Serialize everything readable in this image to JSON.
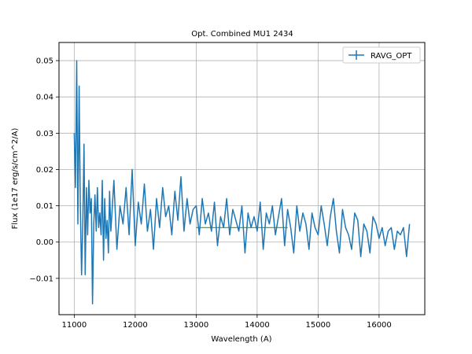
{
  "chart_data": {
    "type": "line",
    "title": "Opt. Combined MU1 2434",
    "xlabel": "Wavelength (A)",
    "ylabel": "Flux (1e17 erg/s/cm^2/A)",
    "xlim": [
      10750,
      16750
    ],
    "ylim": [
      -0.02,
      0.055
    ],
    "xticks": [
      11000,
      12000,
      13000,
      14000,
      15000,
      16000
    ],
    "yticks": [
      -0.01,
      0.0,
      0.01,
      0.02,
      0.03,
      0.04,
      0.05
    ],
    "xtick_labels": [
      "11000",
      "12000",
      "13000",
      "14000",
      "15000",
      "16000"
    ],
    "ytick_labels": [
      "−0.01",
      "0.00",
      "0.01",
      "0.02",
      "0.03",
      "0.04",
      "0.05"
    ],
    "grid": true,
    "legend": {
      "position": "top-right",
      "entries": [
        "RAVG_OPT"
      ]
    },
    "colors": {
      "series": "#1f77b4",
      "secondary": "#2ca02c"
    },
    "series": [
      {
        "name": "RAVG_OPT",
        "x": [
          11000,
          11020,
          11040,
          11060,
          11080,
          11100,
          11120,
          11140,
          11160,
          11180,
          11200,
          11220,
          11240,
          11260,
          11280,
          11300,
          11320,
          11340,
          11360,
          11380,
          11400,
          11420,
          11440,
          11460,
          11480,
          11500,
          11520,
          11540,
          11560,
          11580,
          11600,
          11650,
          11700,
          11750,
          11800,
          11850,
          11900,
          11950,
          12000,
          12050,
          12100,
          12150,
          12200,
          12250,
          12300,
          12350,
          12400,
          12450,
          12500,
          12550,
          12600,
          12650,
          12700,
          12750,
          12800,
          12850,
          12900,
          12950,
          13000,
          13050,
          13100,
          13150,
          13200,
          13250,
          13300,
          13350,
          13400,
          13450,
          13500,
          13550,
          13600,
          13650,
          13700,
          13750,
          13800,
          13850,
          13900,
          13950,
          14000,
          14050,
          14100,
          14150,
          14200,
          14250,
          14300,
          14350,
          14400,
          14450,
          14500,
          14550,
          14600,
          14650,
          14700,
          14750,
          14800,
          14850,
          14900,
          14950,
          15000,
          15050,
          15100,
          15150,
          15200,
          15250,
          15300,
          15350,
          15400,
          15450,
          15500,
          15550,
          15600,
          15650,
          15700,
          15750,
          15800,
          15850,
          15900,
          15950,
          16000,
          16050,
          16100,
          16150,
          16200,
          16250,
          16300,
          16350,
          16400,
          16450,
          16500
        ],
        "y": [
          0.03,
          0.015,
          0.05,
          0.005,
          0.043,
          0.01,
          -0.009,
          0.005,
          0.027,
          -0.009,
          0.015,
          0.002,
          0.017,
          0.008,
          0.012,
          -0.017,
          0.005,
          0.013,
          0.003,
          0.015,
          0.004,
          0.008,
          0.002,
          0.017,
          -0.005,
          0.012,
          0.001,
          0.006,
          -0.003,
          0.014,
          0.003,
          0.017,
          -0.002,
          0.01,
          0.005,
          0.015,
          0.002,
          0.02,
          -0.001,
          0.011,
          0.005,
          0.016,
          0.003,
          0.009,
          -0.002,
          0.012,
          0.004,
          0.015,
          0.007,
          0.01,
          0.002,
          0.014,
          0.006,
          0.018,
          0.003,
          0.012,
          0.005,
          0.009,
          0.01,
          0.002,
          0.012,
          0.005,
          0.008,
          0.003,
          0.011,
          -0.001,
          0.007,
          0.004,
          0.012,
          0.002,
          0.009,
          0.006,
          0.003,
          0.01,
          -0.003,
          0.008,
          0.004,
          0.007,
          0.003,
          0.011,
          -0.002,
          0.008,
          0.005,
          0.01,
          0.002,
          0.007,
          0.012,
          -0.001,
          0.009,
          0.004,
          -0.003,
          0.01,
          0.003,
          0.008,
          0.005,
          -0.002,
          0.008,
          0.004,
          0.002,
          0.01,
          0.005,
          -0.001,
          0.007,
          0.012,
          0.003,
          -0.003,
          0.009,
          0.004,
          0.002,
          -0.002,
          0.008,
          0.006,
          -0.004,
          0.005,
          0.003,
          -0.003,
          0.007,
          0.005,
          0.001,
          0.004,
          -0.001,
          0.003,
          0.004,
          -0.002,
          0.003,
          0.002,
          0.004,
          -0.004,
          0.005
        ]
      },
      {
        "name": "",
        "x": [
          13000,
          14500
        ],
        "y": [
          0.004,
          0.004
        ]
      }
    ]
  }
}
